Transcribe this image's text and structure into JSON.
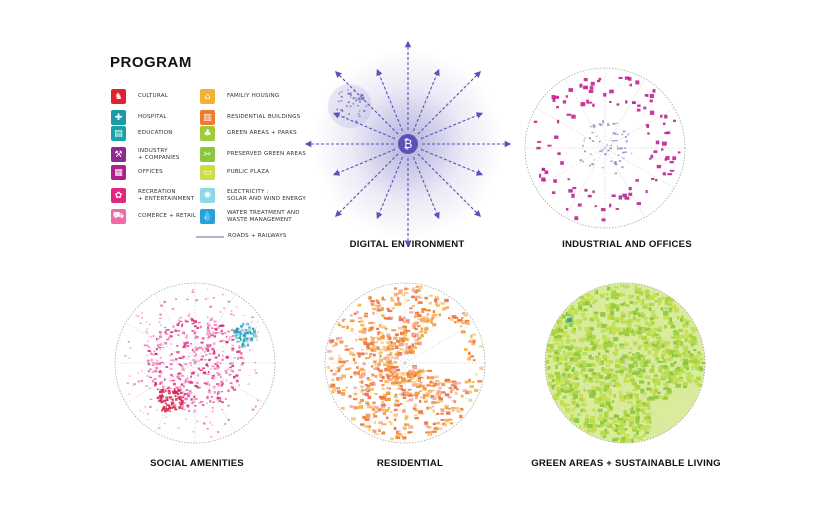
{
  "legend": {
    "title": "PROGRAM",
    "left_items": [
      {
        "label": "CULTURAL",
        "color": "#e5202e",
        "icon": "cultural-icon",
        "glyph": "♞"
      },
      {
        "label": "HOSPITAL",
        "color": "#1b9aa7",
        "icon": "hospital-icon",
        "glyph": "✚"
      },
      {
        "label": "EDUCATION",
        "color": "#1aa3a6",
        "icon": "education-icon",
        "glyph": "▤"
      },
      {
        "label": "INDUSTRY\n+ COMPANIES",
        "color": "#8e2a8e",
        "icon": "industry-icon",
        "glyph": "⚒"
      },
      {
        "label": "OFFICES",
        "color": "#b0208c",
        "icon": "offices-icon",
        "glyph": "▦"
      },
      {
        "label": "RECREATION\n+ ENTERTAINMENT",
        "color": "#e3267f",
        "icon": "recreation-icon",
        "glyph": "✿"
      },
      {
        "label": "COMERCE + RETAIL",
        "color": "#f06aa8",
        "icon": "commerce-icon",
        "glyph": "⛟"
      }
    ],
    "right_items": [
      {
        "label": "FAMILIY HOUSING",
        "color": "#f3b134",
        "icon": "family-housing-icon",
        "glyph": "⌂"
      },
      {
        "label": "RESIDENTIAL BUILDINGS",
        "color": "#f07a2e",
        "icon": "residential-buildings-icon",
        "glyph": "▥"
      },
      {
        "label": "GREEN AREAS + PARKS",
        "color": "#9fcc3a",
        "icon": "green-areas-icon",
        "glyph": "♣"
      },
      {
        "label": "PRESERVED GREEN AREAS",
        "color": "#8cc63e",
        "icon": "preserved-green-icon",
        "glyph": "✂"
      },
      {
        "label": "PUBLIC PLAZA",
        "color": "#c8df4b",
        "icon": "public-plaza-icon",
        "glyph": "▭"
      },
      {
        "label": "ELECTRICITY :\nSOLAR AND WIND ENERGY",
        "color": "#8fd6e6",
        "icon": "electricity-icon",
        "glyph": "✺"
      },
      {
        "label": "WATER TREATMENT AND\nWASTE MANAGEMENT",
        "color": "#2b9fd8",
        "icon": "water-icon",
        "glyph": "💧"
      }
    ],
    "roads_label": "ROADS + RAILWAYS",
    "roads_color": "#b3b3c9"
  },
  "panels": [
    {
      "title": "DIGITAL ENVIRONMENT",
      "kind": "digital",
      "color": "#5b52b5",
      "center_glyph": "₿"
    },
    {
      "title": "INDUSTRIAL AND OFFICES",
      "kind": "industrial",
      "color": "#c0228f"
    },
    {
      "title": "SOCIAL AMENITIES",
      "kind": "social",
      "color": "#e8449a"
    },
    {
      "title": "RESIDENTIAL",
      "kind": "residential",
      "color": "#f3963a"
    },
    {
      "title": "GREEN AREAS + SUSTAINABLE LIVING",
      "kind": "green",
      "color": "#a7d43f"
    }
  ]
}
